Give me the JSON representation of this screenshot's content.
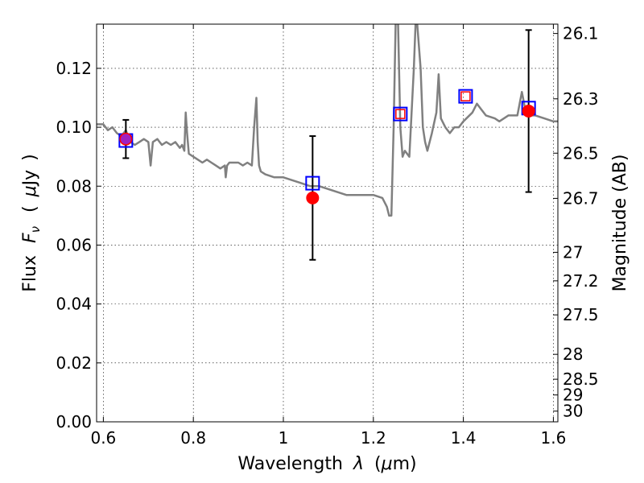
{
  "chart_data": {
    "type": "scatter",
    "title": "",
    "xlabel": "Wavelength λ (μm)",
    "xlabel_parts": [
      "Wavelength",
      "λ",
      "(",
      "μ",
      "m)"
    ],
    "ylabel": "Flux Fν (μJy)",
    "ylabel_parts": [
      "Flux",
      "F",
      "ν",
      "(",
      "μ",
      "Jy",
      ")"
    ],
    "y2label": "Magnitude (AB)",
    "xlim": [
      0.585,
      1.61
    ],
    "ylim": [
      0.0,
      0.135
    ],
    "grid": true,
    "xticks": [
      {
        "v": 0.6,
        "label": "0.6"
      },
      {
        "v": 0.8,
        "label": "0.8"
      },
      {
        "v": 1.0,
        "label": "1"
      },
      {
        "v": 1.2,
        "label": "1.2"
      },
      {
        "v": 1.4,
        "label": "1.4"
      },
      {
        "v": 1.6,
        "label": "1.6"
      }
    ],
    "yticks": [
      {
        "v": 0.0,
        "label": "0.00"
      },
      {
        "v": 0.02,
        "label": "0.02"
      },
      {
        "v": 0.04,
        "label": "0.04"
      },
      {
        "v": 0.06,
        "label": "0.06"
      },
      {
        "v": 0.08,
        "label": "0.08"
      },
      {
        "v": 0.1,
        "label": "0.10"
      },
      {
        "v": 0.12,
        "label": "0.12"
      }
    ],
    "y2ticks": [
      "26.1",
      "26.3",
      "26.5",
      "26.7",
      "27",
      "27.2",
      "27.5",
      "28",
      "28.5",
      "29",
      "30"
    ],
    "colors": {
      "spectrum": "#808080",
      "observed": "#ff0000",
      "model": "#0000ff",
      "errorbar": "#000000",
      "frame": "#000000"
    },
    "series": [
      {
        "name": "",
        "kind": "line",
        "x": [
          0.585,
          0.6,
          0.61,
          0.62,
          0.63,
          0.64,
          0.65,
          0.66,
          0.67,
          0.68,
          0.69,
          0.7,
          0.705,
          0.71,
          0.72,
          0.73,
          0.74,
          0.75,
          0.76,
          0.77,
          0.775,
          0.78,
          0.783,
          0.786,
          0.79,
          0.8,
          0.81,
          0.82,
          0.83,
          0.84,
          0.85,
          0.86,
          0.87,
          0.872,
          0.875,
          0.88,
          0.9,
          0.91,
          0.92,
          0.93,
          0.935,
          0.94,
          0.943,
          0.946,
          0.95,
          0.96,
          0.98,
          1.0,
          1.02,
          1.04,
          1.06,
          1.08,
          1.1,
          1.12,
          1.14,
          1.16,
          1.18,
          1.2,
          1.22,
          1.23,
          1.235,
          1.24,
          1.245,
          1.25,
          1.255,
          1.26,
          1.265,
          1.27,
          1.28,
          1.29,
          1.295,
          1.3,
          1.305,
          1.31,
          1.315,
          1.32,
          1.33,
          1.34,
          1.345,
          1.35,
          1.36,
          1.37,
          1.38,
          1.39,
          1.4,
          1.42,
          1.43,
          1.44,
          1.45,
          1.47,
          1.48,
          1.5,
          1.52,
          1.525,
          1.53,
          1.54,
          1.56,
          1.58,
          1.6,
          1.61
        ],
        "y": [
          0.101,
          0.101,
          0.099,
          0.1,
          0.098,
          0.097,
          0.099,
          0.095,
          0.094,
          0.095,
          0.096,
          0.095,
          0.087,
          0.095,
          0.096,
          0.094,
          0.095,
          0.094,
          0.095,
          0.093,
          0.094,
          0.092,
          0.105,
          0.098,
          0.091,
          0.09,
          0.089,
          0.088,
          0.089,
          0.088,
          0.087,
          0.086,
          0.087,
          0.083,
          0.087,
          0.088,
          0.088,
          0.087,
          0.088,
          0.087,
          0.1,
          0.11,
          0.095,
          0.087,
          0.085,
          0.084,
          0.083,
          0.083,
          0.082,
          0.081,
          0.08,
          0.08,
          0.079,
          0.078,
          0.077,
          0.077,
          0.077,
          0.077,
          0.076,
          0.073,
          0.07,
          0.07,
          0.1,
          0.14,
          0.135,
          0.1,
          0.09,
          0.092,
          0.09,
          0.12,
          0.14,
          0.13,
          0.12,
          0.1,
          0.095,
          0.092,
          0.098,
          0.105,
          0.118,
          0.103,
          0.1,
          0.098,
          0.1,
          0.1,
          0.102,
          0.105,
          0.108,
          0.106,
          0.104,
          0.103,
          0.102,
          0.104,
          0.104,
          0.108,
          0.112,
          0.104,
          0.104,
          0.103,
          0.102,
          0.102
        ]
      },
      {
        "name": "",
        "kind": "errorbar",
        "x": [
          0.65,
          1.065,
          1.545
        ],
        "y": [
          0.096,
          0.076,
          0.1055
        ],
        "yerr": [
          0.0065,
          0.021,
          0.0275
        ]
      },
      {
        "name": "",
        "kind": "open-square",
        "x": [
          0.65,
          1.065,
          1.26,
          1.405,
          1.545
        ],
        "y": [
          0.0955,
          0.081,
          0.1045,
          0.1105,
          0.1065
        ]
      },
      {
        "name": "",
        "kind": "small-open-square",
        "x": [
          1.26,
          1.405
        ],
        "y": [
          0.1045,
          0.1105
        ]
      }
    ]
  }
}
